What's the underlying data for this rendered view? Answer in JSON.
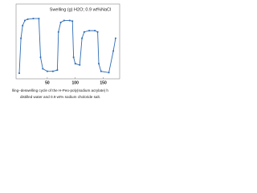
{
  "chart_data": {
    "type": "line",
    "title": "Swelling (g) H2O; 0.9 wt%NaCl",
    "caption": [
      "lling–deswelling cycle of the H-Peo-poly(sodium acrylate) h",
      "distilled water and 0.9 wt% sodium choloride salt."
    ],
    "x": [
      0,
      3,
      6,
      10,
      15,
      25,
      35,
      38,
      42,
      50,
      60,
      68,
      70,
      74,
      80,
      90,
      95,
      97,
      100,
      108,
      112,
      116,
      125,
      135,
      140,
      142,
      146,
      160,
      168,
      172
    ],
    "series": [
      {
        "color": "#2f6db5",
        "values": [
          5,
          60,
          80,
          88,
          90,
          91,
          91,
          30,
          12,
          8,
          8,
          10,
          70,
          85,
          88,
          88,
          87,
          30,
          20,
          18,
          60,
          70,
          72,
          72,
          70,
          20,
          8,
          6,
          40,
          60
        ]
      }
    ],
    "xlim": [
      0,
      175
    ],
    "xticks": [
      50,
      100,
      150
    ],
    "ylim": [
      0,
      100
    ]
  }
}
